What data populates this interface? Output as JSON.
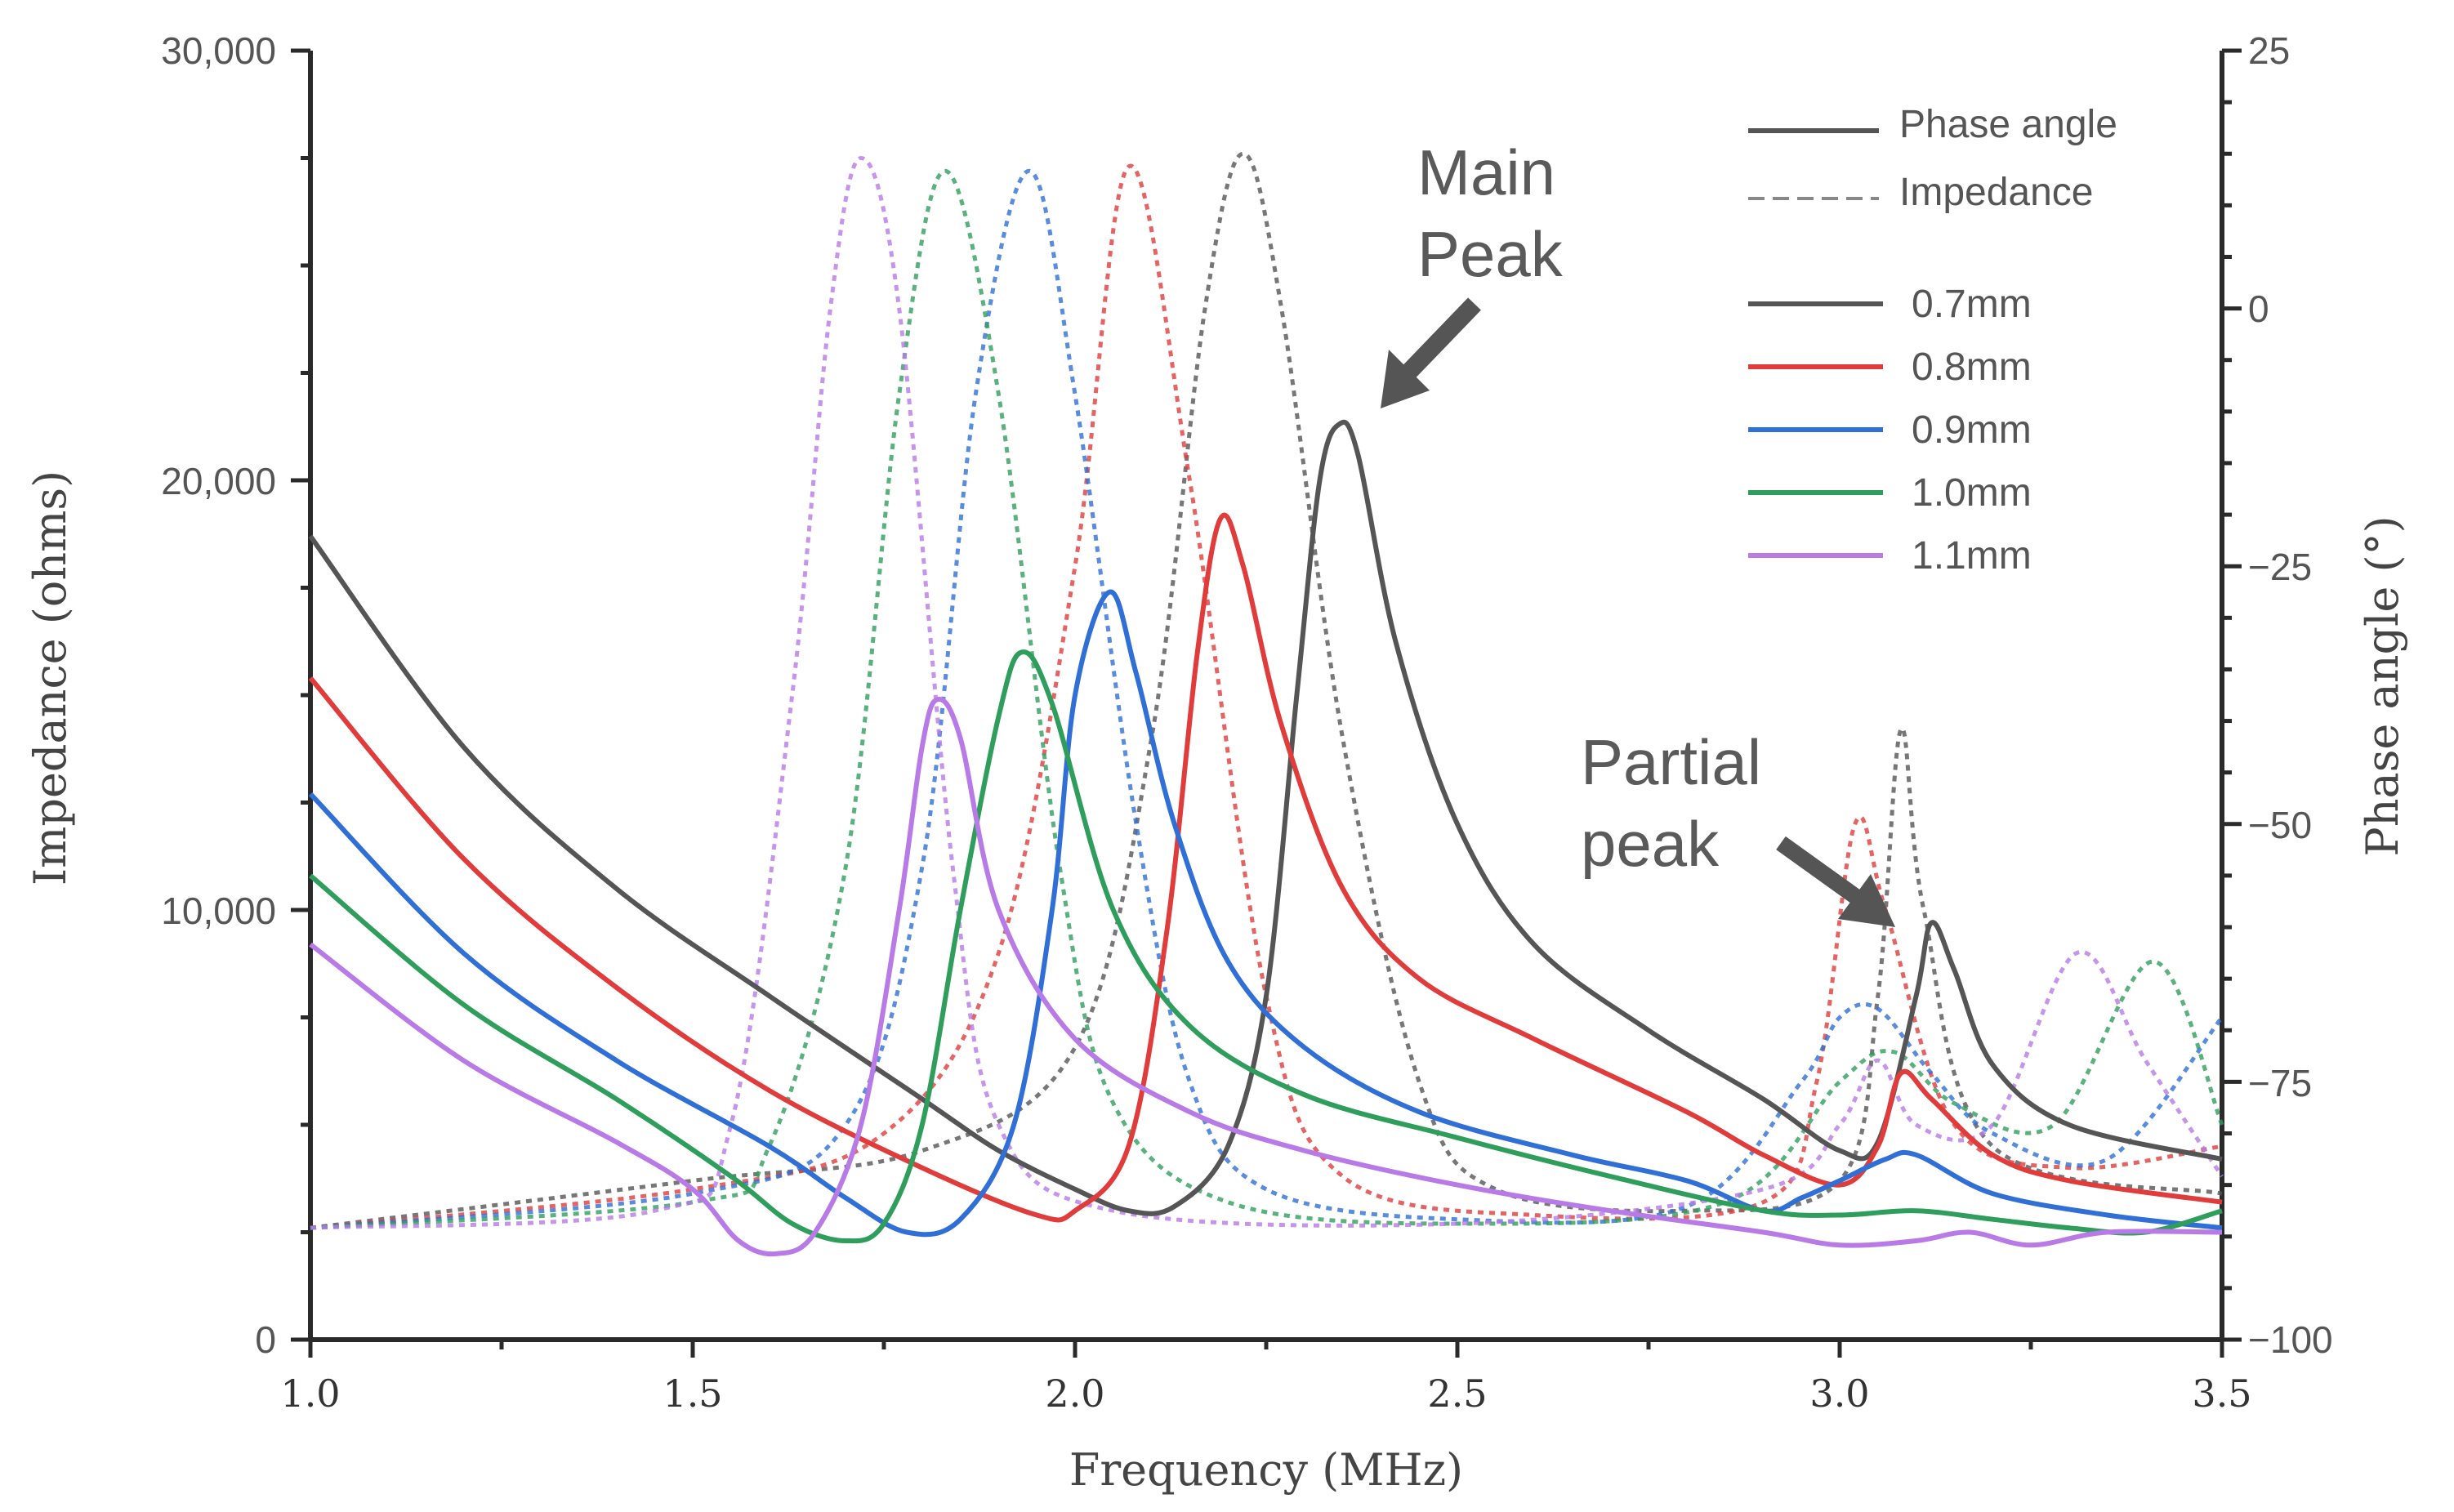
{
  "chart_data": {
    "type": "line",
    "xlabel": "Frequency (MHz)",
    "ylabel_left": "Impedance (ohms)",
    "ylabel_right": "Phase angle (°)",
    "xlim": [
      1.0,
      3.5
    ],
    "ylim_left": [
      0,
      30000
    ],
    "ylim_right": [
      -100,
      25
    ],
    "x_ticks": [
      "1.0",
      "1.5",
      "2.0",
      "2.5",
      "3.0",
      "3.5"
    ],
    "y_ticks_left": [
      "0",
      "10,000",
      "20,000",
      "30,000"
    ],
    "y_ticks_right": [
      "25",
      "0",
      "−25",
      "−50",
      "−75",
      "−100"
    ],
    "legend_style": [
      {
        "label": "Phase angle",
        "dash": "solid"
      },
      {
        "label": "Impedance",
        "dash": "dashed"
      }
    ],
    "legend_placement": "top-right",
    "annotations": [
      {
        "text_lines": [
          "Main",
          "Peak"
        ]
      },
      {
        "text_lines": [
          "Partial",
          "peak"
        ]
      }
    ],
    "series": [
      {
        "name": "0.7mm",
        "color": "#555555",
        "solid": [
          [
            1.0,
            18700
          ],
          [
            1.2,
            13800
          ],
          [
            1.4,
            10500
          ],
          [
            1.6,
            8000
          ],
          [
            1.8,
            5600
          ],
          [
            1.9,
            4400
          ],
          [
            2.0,
            3500
          ],
          [
            2.07,
            3000
          ],
          [
            2.13,
            3100
          ],
          [
            2.2,
            4500
          ],
          [
            2.25,
            8000
          ],
          [
            2.29,
            15000
          ],
          [
            2.32,
            20000
          ],
          [
            2.345,
            21300
          ],
          [
            2.37,
            20600
          ],
          [
            2.42,
            16200
          ],
          [
            2.5,
            12000
          ],
          [
            2.6,
            9200
          ],
          [
            2.75,
            7200
          ],
          [
            2.9,
            5600
          ],
          [
            3.0,
            4400
          ],
          [
            3.05,
            4600
          ],
          [
            3.1,
            8000
          ],
          [
            3.12,
            9700
          ],
          [
            3.15,
            8600
          ],
          [
            3.2,
            6400
          ],
          [
            3.3,
            5000
          ],
          [
            3.5,
            4200
          ]
        ],
        "dotted": [
          [
            1.0,
            2600
          ],
          [
            1.5,
            3700
          ],
          [
            1.8,
            4400
          ],
          [
            2.0,
            6800
          ],
          [
            2.1,
            14000
          ],
          [
            2.17,
            24000
          ],
          [
            2.22,
            27600
          ],
          [
            2.27,
            24000
          ],
          [
            2.35,
            14000
          ],
          [
            2.45,
            6000
          ],
          [
            2.55,
            3500
          ],
          [
            2.8,
            3000
          ],
          [
            3.0,
            3700
          ],
          [
            3.05,
            8000
          ],
          [
            3.08,
            14200
          ],
          [
            3.11,
            10000
          ],
          [
            3.2,
            4500
          ],
          [
            3.5,
            3400
          ]
        ]
      },
      {
        "name": "0.8mm",
        "color": "#e03c3c",
        "solid": [
          [
            1.0,
            15400
          ],
          [
            1.2,
            11200
          ],
          [
            1.4,
            8200
          ],
          [
            1.6,
            5800
          ],
          [
            1.8,
            4000
          ],
          [
            1.95,
            2900
          ],
          [
            2.0,
            3000
          ],
          [
            2.07,
            4500
          ],
          [
            2.12,
            9500
          ],
          [
            2.16,
            16000
          ],
          [
            2.19,
            19100
          ],
          [
            2.22,
            18000
          ],
          [
            2.27,
            14300
          ],
          [
            2.35,
            10500
          ],
          [
            2.45,
            8400
          ],
          [
            2.6,
            7000
          ],
          [
            2.8,
            5300
          ],
          [
            2.9,
            4300
          ],
          [
            3.0,
            3600
          ],
          [
            3.05,
            4500
          ],
          [
            3.08,
            6200
          ],
          [
            3.12,
            5600
          ],
          [
            3.2,
            4300
          ],
          [
            3.3,
            3700
          ],
          [
            3.5,
            3200
          ]
        ],
        "dotted": [
          [
            1.0,
            2600
          ],
          [
            1.5,
            3500
          ],
          [
            1.75,
            4800
          ],
          [
            1.9,
            9000
          ],
          [
            2.0,
            18000
          ],
          [
            2.07,
            27300
          ],
          [
            2.15,
            20000
          ],
          [
            2.25,
            8000
          ],
          [
            2.35,
            3800
          ],
          [
            2.6,
            2900
          ],
          [
            2.9,
            3200
          ],
          [
            2.97,
            6000
          ],
          [
            3.02,
            12000
          ],
          [
            3.06,
            10000
          ],
          [
            3.15,
            5000
          ],
          [
            3.3,
            4000
          ],
          [
            3.5,
            4500
          ]
        ]
      },
      {
        "name": "0.9mm",
        "color": "#2f6fd6",
        "solid": [
          [
            1.0,
            12700
          ],
          [
            1.2,
            9000
          ],
          [
            1.4,
            6500
          ],
          [
            1.6,
            4500
          ],
          [
            1.7,
            3300
          ],
          [
            1.78,
            2500
          ],
          [
            1.85,
            2800
          ],
          [
            1.92,
            5000
          ],
          [
            1.97,
            10000
          ],
          [
            2.0,
            15000
          ],
          [
            2.045,
            17400
          ],
          [
            2.08,
            15500
          ],
          [
            2.13,
            12000
          ],
          [
            2.2,
            8800
          ],
          [
            2.3,
            6800
          ],
          [
            2.45,
            5300
          ],
          [
            2.65,
            4300
          ],
          [
            2.8,
            3700
          ],
          [
            2.9,
            3000
          ],
          [
            2.95,
            3300
          ],
          [
            3.0,
            3700
          ],
          [
            3.06,
            4200
          ],
          [
            3.1,
            4300
          ],
          [
            3.2,
            3400
          ],
          [
            3.35,
            2900
          ],
          [
            3.5,
            2600
          ]
        ],
        "dotted": [
          [
            1.0,
            2600
          ],
          [
            1.5,
            3400
          ],
          [
            1.7,
            5000
          ],
          [
            1.8,
            11000
          ],
          [
            1.87,
            22000
          ],
          [
            1.94,
            27200
          ],
          [
            2.0,
            22000
          ],
          [
            2.08,
            12000
          ],
          [
            2.15,
            6000
          ],
          [
            2.25,
            3500
          ],
          [
            2.5,
            2800
          ],
          [
            2.8,
            3100
          ],
          [
            2.95,
            6000
          ],
          [
            3.0,
            7500
          ],
          [
            3.05,
            7700
          ],
          [
            3.12,
            6200
          ],
          [
            3.2,
            4800
          ],
          [
            3.35,
            4200
          ],
          [
            3.5,
            7500
          ]
        ]
      },
      {
        "name": "1.0mm",
        "color": "#2f9e5c",
        "solid": [
          [
            1.0,
            10800
          ],
          [
            1.2,
            7800
          ],
          [
            1.4,
            5600
          ],
          [
            1.55,
            3800
          ],
          [
            1.63,
            2700
          ],
          [
            1.7,
            2300
          ],
          [
            1.75,
            2700
          ],
          [
            1.8,
            5000
          ],
          [
            1.85,
            10000
          ],
          [
            1.9,
            14500
          ],
          [
            1.93,
            16000
          ],
          [
            1.97,
            14800
          ],
          [
            2.05,
            10000
          ],
          [
            2.15,
            7300
          ],
          [
            2.3,
            5700
          ],
          [
            2.5,
            4700
          ],
          [
            2.7,
            3800
          ],
          [
            2.9,
            3000
          ],
          [
            3.0,
            2900
          ],
          [
            3.1,
            3000
          ],
          [
            3.2,
            2800
          ],
          [
            3.3,
            2600
          ],
          [
            3.4,
            2500
          ],
          [
            3.5,
            3000
          ]
        ],
        "dotted": [
          [
            1.0,
            2600
          ],
          [
            1.5,
            3200
          ],
          [
            1.6,
            4500
          ],
          [
            1.7,
            11000
          ],
          [
            1.77,
            22000
          ],
          [
            1.83,
            27200
          ],
          [
            1.9,
            22000
          ],
          [
            1.98,
            11000
          ],
          [
            2.05,
            5500
          ],
          [
            2.2,
            3200
          ],
          [
            2.5,
            2700
          ],
          [
            2.85,
            3200
          ],
          [
            3.0,
            6000
          ],
          [
            3.07,
            6700
          ],
          [
            3.15,
            5500
          ],
          [
            3.28,
            5000
          ],
          [
            3.41,
            8800
          ],
          [
            3.5,
            5000
          ]
        ]
      },
      {
        "name": "1.1mm",
        "color": "#b77ae6",
        "solid": [
          [
            1.0,
            9200
          ],
          [
            1.2,
            6500
          ],
          [
            1.4,
            4600
          ],
          [
            1.5,
            3500
          ],
          [
            1.56,
            2300
          ],
          [
            1.61,
            2000
          ],
          [
            1.66,
            2500
          ],
          [
            1.72,
            5000
          ],
          [
            1.77,
            10000
          ],
          [
            1.8,
            13800
          ],
          [
            1.82,
            14900
          ],
          [
            1.85,
            14000
          ],
          [
            1.9,
            10000
          ],
          [
            2.0,
            7000
          ],
          [
            2.15,
            5300
          ],
          [
            2.3,
            4400
          ],
          [
            2.5,
            3600
          ],
          [
            2.7,
            3000
          ],
          [
            2.9,
            2500
          ],
          [
            3.0,
            2200
          ],
          [
            3.1,
            2300
          ],
          [
            3.17,
            2500
          ],
          [
            3.25,
            2200
          ],
          [
            3.35,
            2500
          ],
          [
            3.5,
            2500
          ]
        ],
        "dotted": [
          [
            1.0,
            2600
          ],
          [
            1.45,
            3000
          ],
          [
            1.55,
            5000
          ],
          [
            1.63,
            15000
          ],
          [
            1.68,
            24000
          ],
          [
            1.72,
            27500
          ],
          [
            1.77,
            24000
          ],
          [
            1.84,
            11000
          ],
          [
            1.9,
            5000
          ],
          [
            2.05,
            3000
          ],
          [
            2.5,
            2700
          ],
          [
            2.9,
            3500
          ],
          [
            3.0,
            5000
          ],
          [
            3.05,
            6500
          ],
          [
            3.1,
            5000
          ],
          [
            3.2,
            5000
          ],
          [
            3.31,
            9000
          ],
          [
            3.4,
            6500
          ],
          [
            3.5,
            3800
          ]
        ]
      }
    ]
  }
}
